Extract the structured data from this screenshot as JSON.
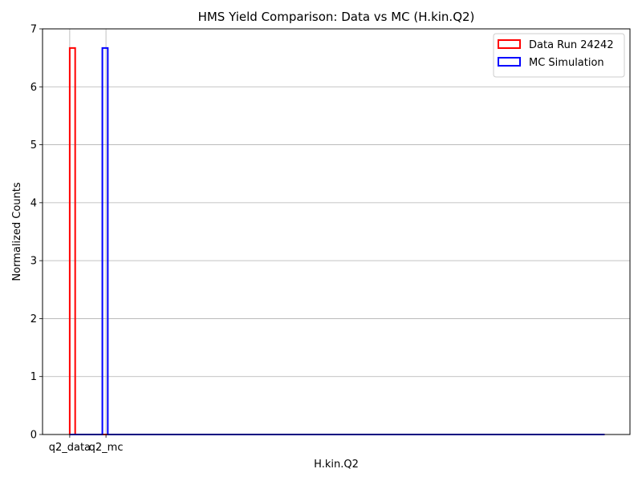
{
  "chart_data": {
    "type": "bar",
    "title": "HMS Yield Comparison: Data vs MC (H.kin.Q2)",
    "xlabel": "H.kin.Q2",
    "ylabel": "Normalized Counts",
    "ylim": [
      0,
      7
    ],
    "yticks": [
      0,
      1,
      2,
      3,
      4,
      5,
      6,
      7
    ],
    "xticks": [
      "q2_data",
      "q2_mc"
    ],
    "xlim": [
      -0.75,
      15.45
    ],
    "grid": true,
    "legend": "top-right",
    "series": [
      {
        "name": "Data Run 24242",
        "color": "#ff0000",
        "style": "step-outline",
        "bins": [
          {
            "x_start": 0.0,
            "x_end": 0.15,
            "value": 6.67
          },
          {
            "x_start": 0.15,
            "x_end": 14.75,
            "value": 0
          }
        ]
      },
      {
        "name": "MC Simulation",
        "color": "#0000ff",
        "style": "step-outline",
        "bins": [
          {
            "x_start": 0.0,
            "x_end": 0.9,
            "value": 0
          },
          {
            "x_start": 0.9,
            "x_end": 1.05,
            "value": 6.67
          },
          {
            "x_start": 1.05,
            "x_end": 14.75,
            "value": 0
          }
        ]
      }
    ]
  }
}
